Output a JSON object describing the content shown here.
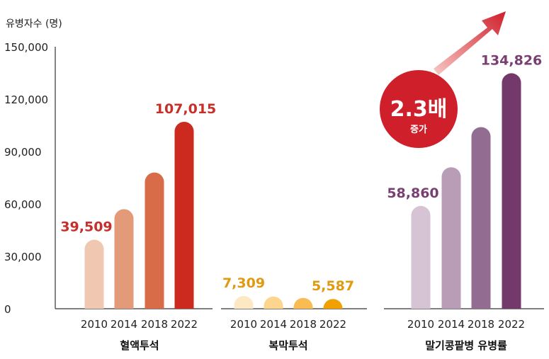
{
  "chart_data": {
    "type": "bar",
    "ylabel": "유병자수 (명)",
    "ylim": [
      0,
      150000
    ],
    "yticks": [
      "0",
      "30,000",
      "60,000",
      "90,000",
      "120,000",
      "150,000"
    ],
    "categories": [
      "2010",
      "2014",
      "2018",
      "2022"
    ],
    "groups": [
      {
        "name": "혈액투석",
        "values": [
          39509,
          57000,
          78000,
          107015
        ],
        "colors": [
          "#f0c7b0",
          "#e39a78",
          "#d86c48",
          "#cc2a1e"
        ],
        "labels": [
          "39,509",
          "",
          "",
          "107,015"
        ],
        "label_color": "#c7302a"
      },
      {
        "name": "복막투석",
        "values": [
          7309,
          7000,
          6200,
          5587
        ],
        "colors": [
          "#fde8c4",
          "#fdd58f",
          "#f8bc52",
          "#f0a000"
        ],
        "labels": [
          "7,309",
          "",
          "",
          "5,587"
        ],
        "label_color": "#e09a12"
      },
      {
        "name": "말기콩팥병 유병률",
        "values": [
          58860,
          81000,
          104000,
          134826
        ],
        "colors": [
          "#d6c4d5",
          "#b99db6",
          "#936c91",
          "#73396b"
        ],
        "labels": [
          "58,860",
          "",
          "",
          "134,826"
        ],
        "label_color": "#7a3f72"
      }
    ],
    "annotation": {
      "value": "2.3배",
      "text": "증가"
    }
  }
}
